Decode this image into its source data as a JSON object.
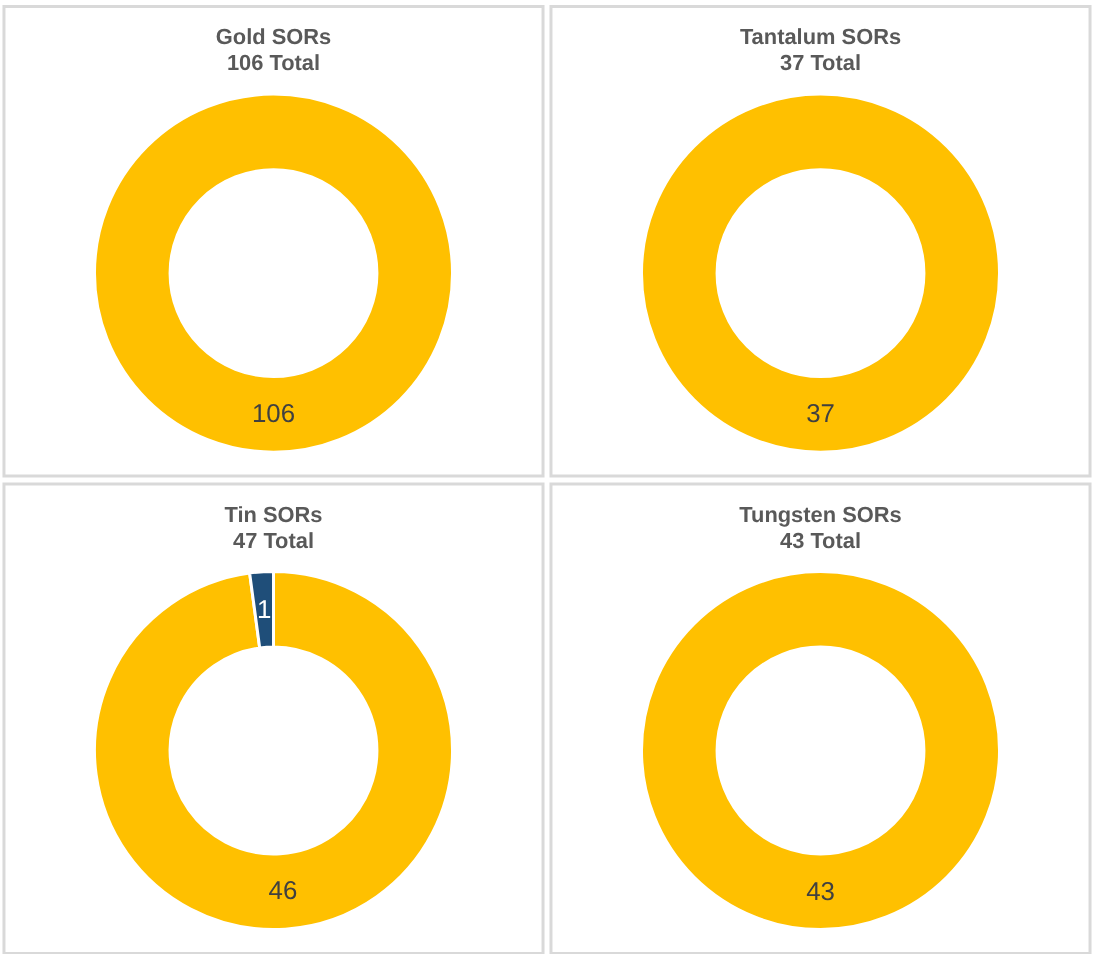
{
  "chart_data": [
    {
      "type": "donut",
      "title": "Gold SORs",
      "subtitle": "106 Total",
      "categories": [
        null
      ],
      "values": [
        106
      ],
      "colors": [
        "#ffc000"
      ],
      "data_labels": true
    },
    {
      "type": "donut",
      "title": "Tantalum SORs",
      "subtitle": "37 Total",
      "categories": [
        null
      ],
      "values": [
        37
      ],
      "colors": [
        "#ffc000"
      ],
      "data_labels": true
    },
    {
      "type": "donut",
      "title": "Tin SORs",
      "subtitle": "47 Total",
      "categories": [
        null,
        null
      ],
      "values": [
        46,
        1
      ],
      "colors": [
        "#ffc000",
        "#1f4e79"
      ],
      "data_labels": true
    },
    {
      "type": "donut",
      "title": "Tungsten SORs",
      "subtitle": "43 Total",
      "categories": [
        null
      ],
      "values": [
        43
      ],
      "colors": [
        "#ffc000"
      ],
      "data_labels": true
    }
  ]
}
